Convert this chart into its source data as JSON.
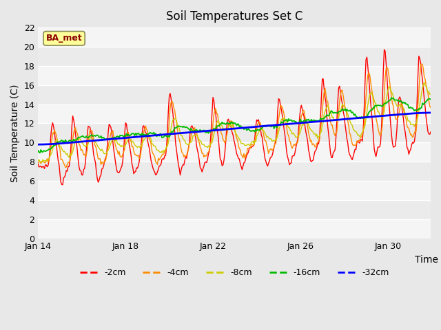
{
  "title": "Soil Temperatures Set C",
  "xlabel": "Time",
  "ylabel": "Soil Temperature (C)",
  "ylim": [
    0,
    22
  ],
  "yticks": [
    0,
    2,
    4,
    6,
    8,
    10,
    12,
    14,
    16,
    18,
    20,
    22
  ],
  "x_tick_labels": [
    "Jan 14",
    "Jan 18",
    "Jan 22",
    "Jan 26",
    "Jan 30"
  ],
  "x_tick_positions": [
    0,
    96,
    192,
    288,
    384
  ],
  "label_box_text": "BA_met",
  "label_box_facecolor": "#FFFF99",
  "label_box_edgecolor": "#888855",
  "label_box_textcolor": "#8B0000",
  "bg_color": "#E8E8E8",
  "plot_bg_color": "#EBEBEB",
  "stripe_color": "#DCDCDC",
  "legend_entries": [
    "-2cm",
    "-4cm",
    "-8cm",
    "-16cm",
    "-32cm"
  ],
  "legend_colors": [
    "#FF0000",
    "#FF8C00",
    "#CCCC00",
    "#00BB00",
    "#0000FF"
  ],
  "line_width": 1.0,
  "n_points": 432
}
